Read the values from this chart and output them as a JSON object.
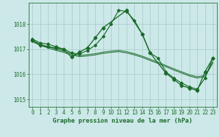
{
  "background_color": "#cce8e8",
  "grid_color": "#aacccc",
  "line_color": "#1a6b2a",
  "xlabel": "Graphe pression niveau de la mer (hPa)",
  "xlabel_fontsize": 6.5,
  "tick_fontsize": 5.5,
  "ylim": [
    1014.7,
    1018.85
  ],
  "xlim": [
    -0.5,
    23.5
  ],
  "yticks": [
    1015,
    1016,
    1017,
    1018
  ],
  "xticks": [
    0,
    1,
    2,
    3,
    4,
    5,
    6,
    7,
    8,
    9,
    10,
    11,
    12,
    13,
    14,
    15,
    16,
    17,
    18,
    19,
    20,
    21,
    22,
    23
  ],
  "series": [
    {
      "x": [
        0,
        1,
        2,
        3,
        4,
        5,
        6,
        7,
        8,
        9,
        10,
        11,
        12,
        13,
        14,
        15,
        16,
        17,
        18,
        19,
        20,
        21,
        22,
        23
      ],
      "y": [
        1017.4,
        1017.25,
        1017.2,
        1017.1,
        1017.0,
        1016.85,
        1016.8,
        1016.95,
        1017.15,
        1017.5,
        1018.0,
        1018.55,
        1018.5,
        1018.15,
        1017.6,
        1016.85,
        1016.65,
        1016.1,
        1015.85,
        1015.65,
        1015.5,
        1015.4,
        1015.85,
        1016.65
      ],
      "marker": "D",
      "markersize": 2.0,
      "linewidth": 0.9
    },
    {
      "x": [
        0,
        1,
        2,
        3,
        4,
        5,
        6,
        7,
        8,
        9,
        10,
        11,
        12,
        13,
        14,
        15,
        16,
        17,
        18,
        19,
        20,
        21,
        22,
        23
      ],
      "y": [
        1017.35,
        1017.2,
        1017.1,
        1017.0,
        1016.92,
        1016.82,
        1016.75,
        1016.78,
        1016.82,
        1016.88,
        1016.92,
        1016.95,
        1016.9,
        1016.82,
        1016.72,
        1016.6,
        1016.48,
        1016.35,
        1016.22,
        1016.1,
        1015.98,
        1015.9,
        1015.95,
        1016.5
      ],
      "marker": null,
      "markersize": 0,
      "linewidth": 0.75
    },
    {
      "x": [
        0,
        1,
        2,
        3,
        4,
        5,
        6,
        7,
        8,
        9,
        10,
        11,
        12,
        13,
        14,
        15,
        16,
        17,
        18,
        19,
        20,
        21,
        22,
        23
      ],
      "y": [
        1017.3,
        1017.15,
        1017.05,
        1016.95,
        1016.87,
        1016.77,
        1016.7,
        1016.73,
        1016.77,
        1016.83,
        1016.87,
        1016.9,
        1016.85,
        1016.77,
        1016.67,
        1016.55,
        1016.43,
        1016.3,
        1016.17,
        1016.05,
        1015.93,
        1015.85,
        1015.9,
        1016.45
      ],
      "marker": null,
      "markersize": 0,
      "linewidth": 0.75
    },
    {
      "x": [
        0,
        1,
        2,
        3,
        4,
        5,
        6,
        7,
        8,
        9,
        12,
        14,
        15,
        17,
        18,
        19,
        20,
        21,
        22,
        23
      ],
      "y": [
        1017.35,
        1017.15,
        1017.1,
        1017.05,
        1016.98,
        1016.68,
        1016.88,
        1017.05,
        1017.45,
        1017.85,
        1018.55,
        1017.6,
        1016.85,
        1016.05,
        1015.8,
        1015.55,
        1015.45,
        1015.35,
        1016.1,
        1016.65
      ],
      "marker": "D",
      "markersize": 2.5,
      "linewidth": 1.0
    }
  ]
}
